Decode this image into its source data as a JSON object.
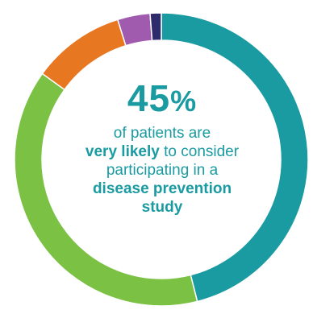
{
  "chart_data": {
    "type": "pie",
    "variant": "donut",
    "slices": [
      {
        "label": "very likely",
        "value": 45,
        "color": "#1a9ba1"
      },
      {
        "label": "",
        "value": 38,
        "color": "#7bc143"
      },
      {
        "label": "",
        "value": 10,
        "color": "#e87722"
      },
      {
        "label": "",
        "value": 3.5,
        "color": "#a05aae"
      },
      {
        "label": "",
        "value": 1.2,
        "color": "#2e2a6b"
      }
    ]
  },
  "headline": {
    "number": "45",
    "sign": "%"
  },
  "caption": {
    "line1": "of patients are",
    "line2_bold": "very likely",
    "line2_rest": " to consider",
    "line3": "participating in a",
    "line4_bold": "disease prevention",
    "line5_bold": "study"
  }
}
